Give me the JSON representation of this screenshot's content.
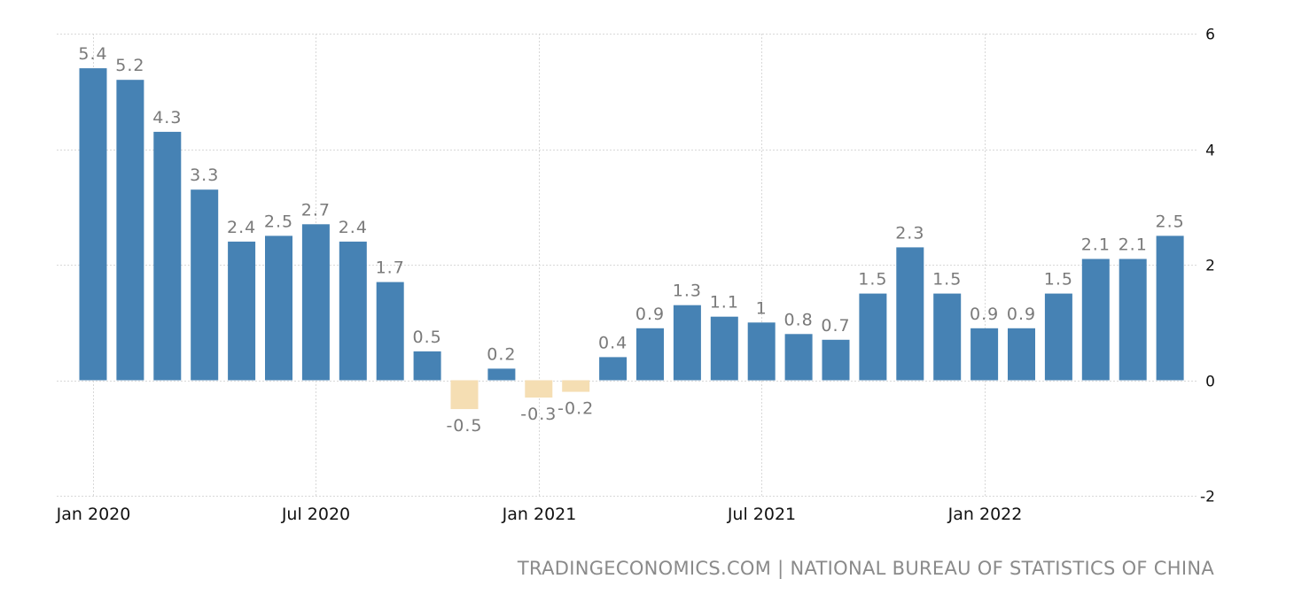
{
  "chart_data": {
    "type": "bar",
    "categories": [
      "Jan 2020",
      "Feb 2020",
      "Mar 2020",
      "Apr 2020",
      "May 2020",
      "Jun 2020",
      "Jul 2020",
      "Aug 2020",
      "Sep 2020",
      "Oct 2020",
      "Nov 2020",
      "Dec 2020",
      "Jan 2021",
      "Feb 2021",
      "Mar 2021",
      "Apr 2021",
      "May 2021",
      "Jun 2021",
      "Jul 2021",
      "Aug 2021",
      "Sep 2021",
      "Oct 2021",
      "Nov 2021",
      "Dec 2021",
      "Jan 2022",
      "Feb 2022",
      "Mar 2022",
      "Apr 2022",
      "May 2022",
      "Jun 2022"
    ],
    "values": [
      5.4,
      5.2,
      4.3,
      3.3,
      2.4,
      2.5,
      2.7,
      2.4,
      1.7,
      0.5,
      -0.5,
      0.2,
      -0.3,
      -0.2,
      0.4,
      0.9,
      1.3,
      1.1,
      1,
      0.8,
      0.7,
      1.5,
      2.3,
      1.5,
      0.9,
      0.9,
      1.5,
      2.1,
      2.1,
      2.5
    ],
    "labels": [
      "5.4",
      "5.2",
      "4.3",
      "3.3",
      "2.4",
      "2.5",
      "2.7",
      "2.4",
      "1.7",
      "0.5",
      "-0.5",
      "0.2",
      "-0.3",
      "-0.2",
      "0.4",
      "0.9",
      "1.3",
      "1.1",
      "1",
      "0.8",
      "0.7",
      "1.5",
      "2.3",
      "1.5",
      "0.9",
      "0.9",
      "1.5",
      "2.1",
      "2.1",
      "2.5"
    ],
    "x_tick_labels": [
      {
        "index": 0,
        "label": "Jan 2020"
      },
      {
        "index": 6,
        "label": "Jul 2020"
      },
      {
        "index": 12,
        "label": "Jan 2021"
      },
      {
        "index": 18,
        "label": "Jul 2021"
      },
      {
        "index": 24,
        "label": "Jan 2022"
      }
    ],
    "y_ticks": [
      6,
      4,
      2,
      0,
      -2
    ],
    "ylim": [
      -2,
      6
    ],
    "title": "",
    "xlabel": "",
    "ylabel": "",
    "grid": true,
    "y_axis_side": "right",
    "colors": {
      "positive": "#4682b4",
      "negative": "#f5deb3"
    }
  },
  "source_text": "TRADINGECONOMICS.COM | NATIONAL BUREAU OF STATISTICS OF CHINA"
}
